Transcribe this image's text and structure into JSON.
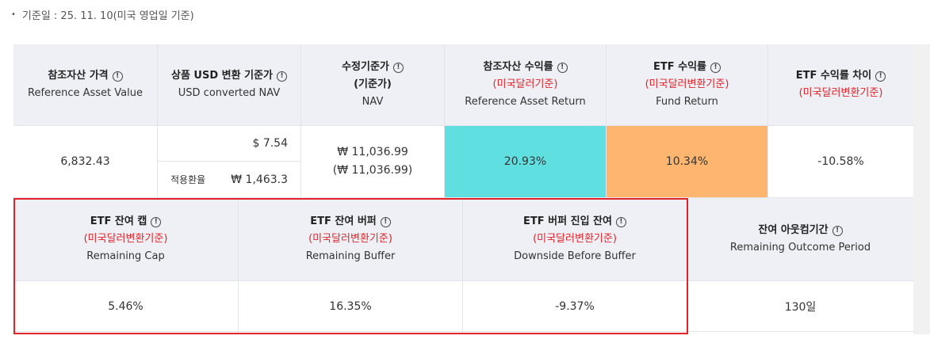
{
  "basis_text": "기준일 : 25. 11. 10(미국 영업일 기준)",
  "colors": {
    "accent_red": "#e0242a",
    "return_cyan": "#5fdfe0",
    "return_orange": "#fdb56f",
    "header_bg": "#eef0f5"
  },
  "info_icon_glyph": "!",
  "row1": {
    "headers": [
      {
        "ko": "참조자산 가격",
        "en": "Reference Asset Value"
      },
      {
        "ko": "상품 USD 변환 기준가",
        "en": "USD converted NAV"
      },
      {
        "ko": "수정기준가",
        "sub": "(기준가)",
        "en": "NAV"
      },
      {
        "ko": "참조자산 수익률",
        "red": "(미국달러기준)",
        "en": "Reference Asset Return"
      },
      {
        "ko": "ETF 수익률",
        "red": "(미국달러변환기준)",
        "en": "Fund Return"
      },
      {
        "ko": "ETF 수익률 차이",
        "red": "(미국달러변환기준)"
      }
    ],
    "values": {
      "reference_asset_value": "6,832.43",
      "usd_nav": "$ 7.54",
      "fx_label": "적용환율",
      "fx_value": "₩ 1,463.3",
      "nav_line1": "₩ 11,036.99",
      "nav_line2": "(₩ 11,036.99)",
      "reference_asset_return": "20.93%",
      "fund_return": "10.34%",
      "return_diff": "-10.58%"
    }
  },
  "row2": {
    "headers": [
      {
        "ko": "ETF 잔여 캡",
        "red": "(미국달러변환기준)",
        "en": "Remaining Cap"
      },
      {
        "ko": "ETF 잔여 버퍼",
        "red": "(미국달러변환기준)",
        "en": "Remaining Buffer"
      },
      {
        "ko": "ETF 버퍼 진입 잔여",
        "red": "(미국달러변환기준)",
        "en": "Downside Before Buffer"
      },
      {
        "ko": "잔여 아웃컴기간",
        "en": "Remaining Outcome Period"
      }
    ],
    "values": {
      "remaining_cap": "5.46%",
      "remaining_buffer": "16.35%",
      "downside_before_buffer": "-9.37%",
      "remaining_outcome_period": "130일"
    }
  }
}
